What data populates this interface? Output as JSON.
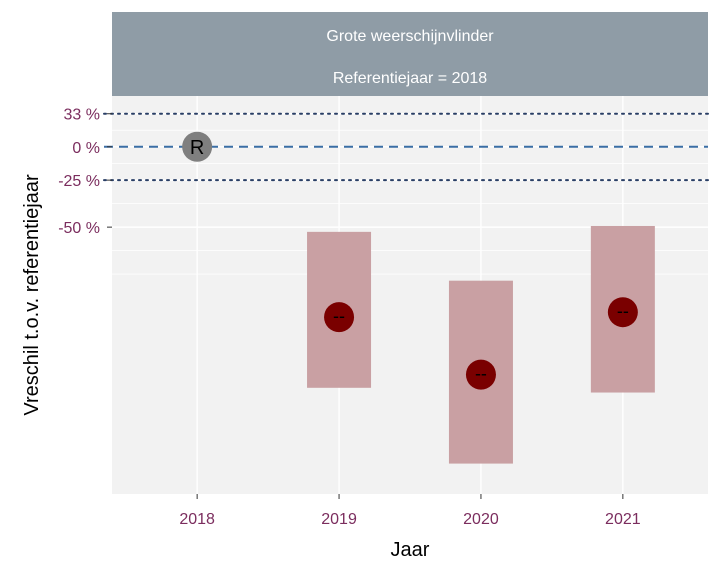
{
  "chart_data": {
    "type": "point-range",
    "strip": {
      "line1": "Grote weerschijnvlinder",
      "line2": "Referentiejaar = 2018",
      "fill": "#8f9ca6"
    },
    "xlabel": "Jaar",
    "ylabel": "Vreschil t.o.v. referentiejaar",
    "categories": [
      "2018",
      "2019",
      "2020",
      "2021"
    ],
    "y_scale": "log",
    "y_ticks": [
      {
        "label": "33 %",
        "value": 0.33
      },
      {
        "label": "0 %",
        "value": 0
      },
      {
        "label": "-25 %",
        "value": -0.25
      },
      {
        "label": "-50 %",
        "value": -0.5
      }
    ],
    "y_limits": [
      -0.95,
      0.55
    ],
    "reference_lines": [
      {
        "value": 0,
        "style": "dashed",
        "color": "#3a6ea5"
      },
      {
        "value": 0.33,
        "style": "dotted",
        "color": "#2a3f66"
      },
      {
        "value": -0.25,
        "style": "dotted",
        "color": "#2a3f66"
      }
    ],
    "reference": {
      "year": "2018",
      "value": 0,
      "label": "R",
      "color": "#7f7f7f"
    },
    "series": [
      {
        "year": "2019",
        "estimate": -0.77,
        "lower": -0.875,
        "upper": -0.52,
        "symbol": "--"
      },
      {
        "year": "2020",
        "estimate": -0.86,
        "lower": -0.935,
        "upper": -0.685,
        "symbol": "--"
      },
      {
        "year": "2021",
        "estimate": -0.76,
        "lower": -0.88,
        "upper": -0.495,
        "symbol": "--"
      }
    ],
    "colors": {
      "panel": "#f2f2f2",
      "grid": "#ffffff",
      "interval": "#c9a0a3",
      "point": "#7a0000",
      "tick_label": "#7b2d5e"
    }
  }
}
